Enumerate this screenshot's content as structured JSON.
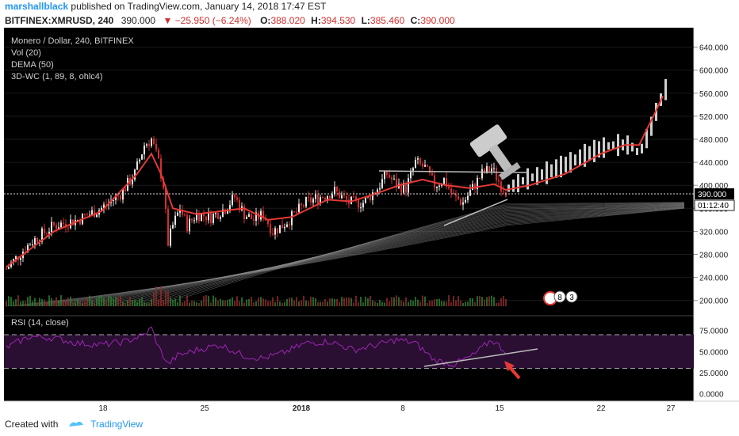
{
  "header": {
    "author": "marshallblack",
    "published_text": "published on TradingView.com, January 14, 2018 17:47 EST",
    "symbol": "BITFINEX:XMRUSD, 240",
    "last": "390.000",
    "change": "−25.950 (−6.24%)",
    "open_label": "O:",
    "open": "388.020",
    "high_label": "H:",
    "high": "394.530",
    "low_label": "L:",
    "low": "385.460",
    "close_label": "C:",
    "close": "390.000"
  },
  "legend": {
    "title": "Monero / Dollar, 240, BITFINEX",
    "items": [
      "Vol (20)",
      "DEMA (50)",
      "3D-WC (1, 89, 8, ohlc4)"
    ]
  },
  "rsi_legend": "RSI (14, close)",
  "footer": {
    "created_with": "Created with",
    "brand": "TradingView"
  },
  "colors": {
    "background": "#000000",
    "up_candle": "#e6e6e6",
    "down_candle": "#d32f2f",
    "dema": "#e53935",
    "projection": "#cfcfcf",
    "rsi": "#9c27b0",
    "rsi_band": "#2a0f33",
    "arrow": "#e53935"
  },
  "chart_data": [
    {
      "type": "candlestick",
      "title": "Monero / Dollar, 240, BITFINEX",
      "y_ticks": [
        "640.000",
        "600.000",
        "560.000",
        "520.000",
        "480.000",
        "440.000",
        "400.000",
        "360.000",
        "320.000",
        "280.000",
        "240.000",
        "200.000"
      ],
      "ylim": [
        190,
        660
      ],
      "x_ticks": [
        "18",
        "25",
        "2018",
        "8",
        "15",
        "22",
        "27"
      ],
      "price_label": "390.000",
      "time_label": "01:12:40",
      "series": [
        {
          "name": "price",
          "anchors": [
            [
              0,
              255
            ],
            [
              10,
              300
            ],
            [
              20,
              330
            ],
            [
              30,
              340
            ],
            [
              40,
              360
            ],
            [
              48,
              385
            ],
            [
              54,
              420
            ],
            [
              58,
              470
            ],
            [
              61,
              480
            ],
            [
              64,
              440
            ],
            [
              66,
              400
            ],
            [
              68,
              300
            ],
            [
              70,
              330
            ],
            [
              73,
              360
            ],
            [
              76,
              330
            ],
            [
              80,
              350
            ],
            [
              86,
              345
            ],
            [
              92,
              360
            ],
            [
              96,
              380
            ],
            [
              100,
              350
            ],
            [
              104,
              340
            ],
            [
              108,
              350
            ],
            [
              112,
              320
            ],
            [
              116,
              330
            ],
            [
              120,
              345
            ],
            [
              126,
              370
            ],
            [
              132,
              380
            ],
            [
              138,
              390
            ],
            [
              144,
              370
            ],
            [
              150,
              370
            ],
            [
              156,
              395
            ],
            [
              160,
              420
            ],
            [
              164,
              400
            ],
            [
              168,
              395
            ],
            [
              172,
              440
            ],
            [
              176,
              430
            ],
            [
              180,
              400
            ],
            [
              184,
              410
            ],
            [
              188,
              380
            ],
            [
              192,
              370
            ],
            [
              196,
              395
            ],
            [
              200,
              420
            ],
            [
              204,
              430
            ],
            [
              208,
              400
            ],
            [
              210,
              390
            ]
          ]
        },
        {
          "name": "DEMA (50)",
          "anchors": [
            [
              0,
              258
            ],
            [
              20,
              320
            ],
            [
              40,
              355
            ],
            [
              55,
              420
            ],
            [
              61,
              455
            ],
            [
              65,
              420
            ],
            [
              70,
              360
            ],
            [
              80,
              350
            ],
            [
              90,
              355
            ],
            [
              100,
              360
            ],
            [
              110,
              340
            ],
            [
              120,
              345
            ],
            [
              135,
              375
            ],
            [
              145,
              372
            ],
            [
              155,
              385
            ],
            [
              165,
              400
            ],
            [
              175,
              410
            ],
            [
              185,
              400
            ],
            [
              195,
              395
            ],
            [
              205,
              402
            ],
            [
              210,
              392
            ],
            [
              220,
              400
            ],
            [
              235,
              420
            ],
            [
              250,
              455
            ],
            [
              260,
              470
            ],
            [
              266,
              470
            ],
            [
              272,
              520
            ],
            [
              276,
              555
            ]
          ]
        },
        {
          "name": "projection",
          "anchors": [
            [
              211,
              395
            ],
            [
              218,
              410
            ],
            [
              226,
              420
            ],
            [
              236,
              438
            ],
            [
              246,
              458
            ],
            [
              254,
              470
            ],
            [
              262,
              470
            ],
            [
              266,
              455
            ],
            [
              270,
              490
            ],
            [
              274,
              540
            ],
            [
              278,
              575
            ]
          ]
        }
      ],
      "volume_max": 30,
      "annotations": [
        "gavel icon",
        "resistance line at 430",
        "support trendline"
      ]
    },
    {
      "type": "line",
      "title": "RSI (14, close)",
      "y_ticks": [
        "75.0000",
        "50.0000",
        "25.0000",
        "0.0000"
      ],
      "ylim": [
        -5,
        85
      ],
      "bands": [
        70,
        30
      ],
      "series": [
        {
          "name": "RSI",
          "anchors": [
            [
              0,
              55
            ],
            [
              10,
              68
            ],
            [
              20,
              66
            ],
            [
              30,
              60
            ],
            [
              40,
              58
            ],
            [
              50,
              62
            ],
            [
              58,
              70
            ],
            [
              61,
              78
            ],
            [
              64,
              55
            ],
            [
              68,
              35
            ],
            [
              72,
              45
            ],
            [
              80,
              52
            ],
            [
              90,
              58
            ],
            [
              100,
              45
            ],
            [
              108,
              42
            ],
            [
              116,
              48
            ],
            [
              126,
              60
            ],
            [
              136,
              62
            ],
            [
              146,
              52
            ],
            [
              156,
              58
            ],
            [
              164,
              64
            ],
            [
              172,
              60
            ],
            [
              180,
              40
            ],
            [
              188,
              35
            ],
            [
              196,
              45
            ],
            [
              204,
              64
            ],
            [
              210,
              50
            ]
          ]
        }
      ],
      "annotations": [
        "rising trendline",
        "red arrow"
      ]
    }
  ]
}
